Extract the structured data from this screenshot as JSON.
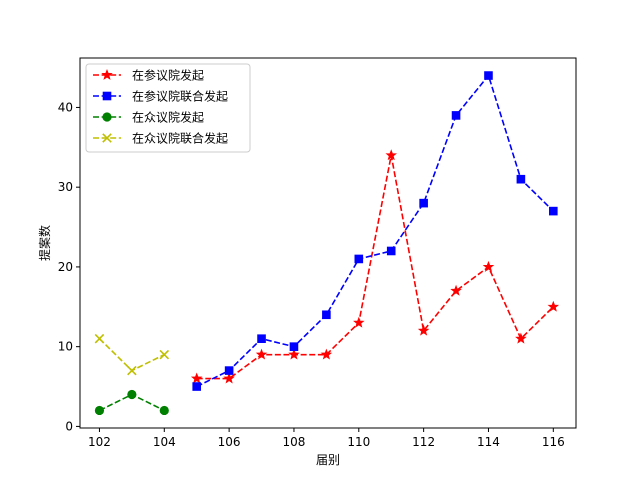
{
  "chart_data": {
    "type": "line",
    "title": "",
    "xlabel": "届别",
    "ylabel": "提案数",
    "xlim": [
      101.4,
      116.7
    ],
    "ylim": [
      -0.2,
      46.2
    ],
    "x_ticks": [
      102,
      104,
      106,
      108,
      110,
      112,
      114,
      116
    ],
    "y_ticks": [
      0,
      10,
      20,
      30,
      40
    ],
    "grid": false,
    "legend_position": "top-left",
    "series": [
      {
        "name": "在参议院发起",
        "color": "#ff0000",
        "marker": "star",
        "linestyle": "dashed",
        "x": [
          105,
          106,
          107,
          108,
          109,
          110,
          111,
          112,
          113,
          114,
          115,
          116
        ],
        "values": [
          6,
          6,
          9,
          9,
          9,
          13,
          34,
          12,
          17,
          20,
          11,
          15
        ]
      },
      {
        "name": "在参议院联合发起",
        "color": "#0000ff",
        "marker": "square",
        "linestyle": "dashed",
        "x": [
          105,
          106,
          107,
          108,
          109,
          110,
          111,
          112,
          113,
          114,
          115,
          116
        ],
        "values": [
          5,
          7,
          11,
          10,
          14,
          21,
          22,
          28,
          39,
          44,
          31,
          27
        ]
      },
      {
        "name": "在众议院发起",
        "color": "#008000",
        "marker": "circle",
        "linestyle": "dashed",
        "x": [
          102,
          103,
          104
        ],
        "values": [
          2,
          4,
          2
        ]
      },
      {
        "name": "在众议院联合发起",
        "color": "#bfbf00",
        "marker": "x",
        "linestyle": "dashed",
        "x": [
          102,
          103,
          104
        ],
        "values": [
          11,
          7,
          9
        ]
      }
    ]
  }
}
